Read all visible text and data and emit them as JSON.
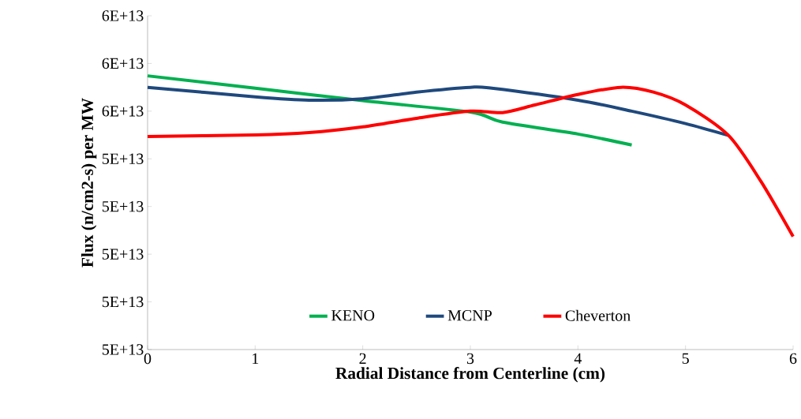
{
  "chart_data": {
    "type": "line",
    "xlabel": "Radial Distance from Centerline (cm)",
    "ylabel": "Flux (n/cm2-s) per MW",
    "xlim": [
      0,
      6
    ],
    "xticks": [
      0,
      1,
      2,
      3,
      4,
      5,
      6
    ],
    "ylim": [
      50000000000000.0,
      57000000000000.0
    ],
    "yticks": [
      {
        "value": 50000000000000.0,
        "label": "5E+13"
      },
      {
        "value": 51000000000000.0,
        "label": "5E+13"
      },
      {
        "value": 52000000000000.0,
        "label": "5E+13"
      },
      {
        "value": 53000000000000.0,
        "label": "5E+13"
      },
      {
        "value": 54000000000000.0,
        "label": "5E+13"
      },
      {
        "value": 55000000000000.0,
        "label": "6E+13"
      },
      {
        "value": 56000000000000.0,
        "label": "6E+13"
      },
      {
        "value": 57000000000000.0,
        "label": "6E+13"
      }
    ],
    "grid": false,
    "legend": "bottom",
    "marker": "none",
    "line_style": "solid",
    "series": [
      {
        "name": "KENO",
        "color": "#00b050",
        "x": [
          0,
          1,
          2,
          3,
          3.3,
          4,
          4.5
        ],
        "values": [
          55740000000000.0,
          55480000000000.0,
          55220000000000.0,
          54980000000000.0,
          54770000000000.0,
          54520000000000.0,
          54290000000000.0
        ]
      },
      {
        "name": "MCNP",
        "color": "#1f497d",
        "x": [
          0,
          1,
          1.5,
          2,
          2.5,
          3,
          3.2,
          4,
          4.5,
          5,
          5.4
        ],
        "values": [
          55500000000000.0,
          55300000000000.0,
          55230000000000.0,
          55260000000000.0,
          55400000000000.0,
          55500000000000.0,
          55480000000000.0,
          55230000000000.0,
          55000000000000.0,
          54740000000000.0,
          54490000000000.0
        ]
      },
      {
        "name": "Cheverton",
        "color": "#ff0000",
        "x": [
          0,
          1,
          1.5,
          2,
          2.5,
          3,
          3.3,
          3.6,
          4,
          4.4,
          4.7,
          5,
          5.4,
          5.7,
          6
        ],
        "values": [
          54470000000000.0,
          54500000000000.0,
          54550000000000.0,
          54670000000000.0,
          54850000000000.0,
          55000000000000.0,
          54970000000000.0,
          55130000000000.0,
          55350000000000.0,
          55500000000000.0,
          55400000000000.0,
          55130000000000.0,
          54490000000000.0,
          53530000000000.0,
          52370000000000.0
        ]
      }
    ]
  }
}
